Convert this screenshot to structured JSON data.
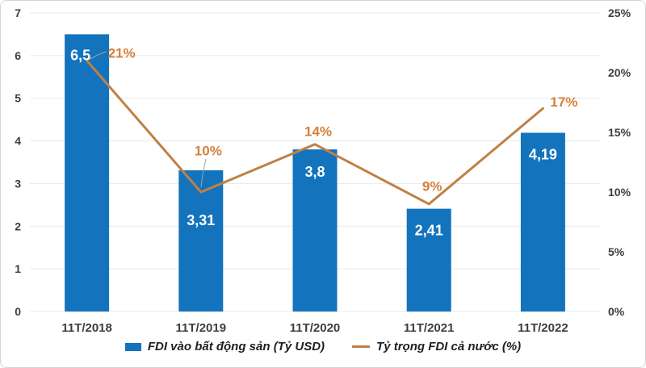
{
  "chart_data": {
    "type": "combo",
    "title": "",
    "categories": [
      "11T/2018",
      "11T/2019",
      "11T/2020",
      "11T/2021",
      "11T/2022"
    ],
    "series": [
      {
        "name": "FDI vào bất động sản (Tỷ USD)",
        "type": "bar",
        "axis": "left",
        "values": [
          6.5,
          3.31,
          3.8,
          2.41,
          4.19
        ],
        "labels": [
          "6,5",
          "3,31",
          "3,8",
          "2,41",
          "4,19"
        ],
        "color": "#1473bd",
        "label_color": "#ffffff"
      },
      {
        "name": "Tỷ trọng FDI cả nước (%)",
        "type": "line",
        "axis": "right",
        "values": [
          21,
          10,
          14,
          9,
          17
        ],
        "labels": [
          "21%",
          "10%",
          "14%",
          "9%",
          "17%"
        ],
        "color": "#c08045",
        "label_color": "#d5803a"
      }
    ],
    "left_axis": {
      "min": 0,
      "max": 7,
      "ticks": [
        "0",
        "1",
        "2",
        "3",
        "4",
        "5",
        "6",
        "7"
      ]
    },
    "right_axis": {
      "min": 0,
      "max": 25,
      "ticks": [
        "0%",
        "5%",
        "10%",
        "15%",
        "20%",
        "25%"
      ]
    },
    "grid": "horizontal",
    "legend_position": "bottom"
  },
  "colors": {
    "gridline": "#e7e9ec",
    "axis_text": "#3d3d3d",
    "leader_line": "#a0a0a0"
  }
}
